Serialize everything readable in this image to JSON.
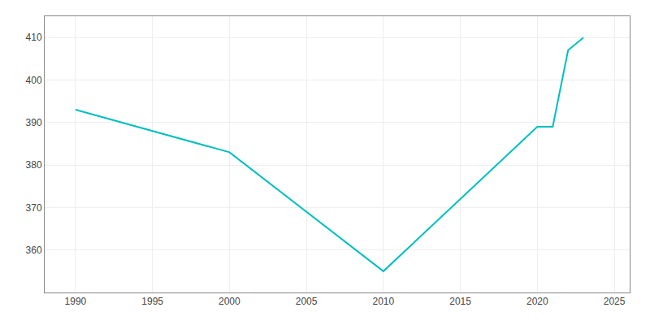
{
  "chart_data": {
    "type": "line",
    "x": [
      1990,
      2000,
      2010,
      2020,
      2021,
      2022,
      2023
    ],
    "values": [
      393,
      383,
      355,
      389,
      389,
      407,
      410
    ],
    "color": "#00BFBF",
    "xlim": [
      1988,
      2026
    ],
    "ylim": [
      350,
      415
    ],
    "xticks": [
      1990,
      1995,
      2000,
      2005,
      2010,
      2015,
      2020,
      2025
    ],
    "yticks": [
      360,
      370,
      380,
      390,
      400,
      410
    ],
    "grid": true
  }
}
